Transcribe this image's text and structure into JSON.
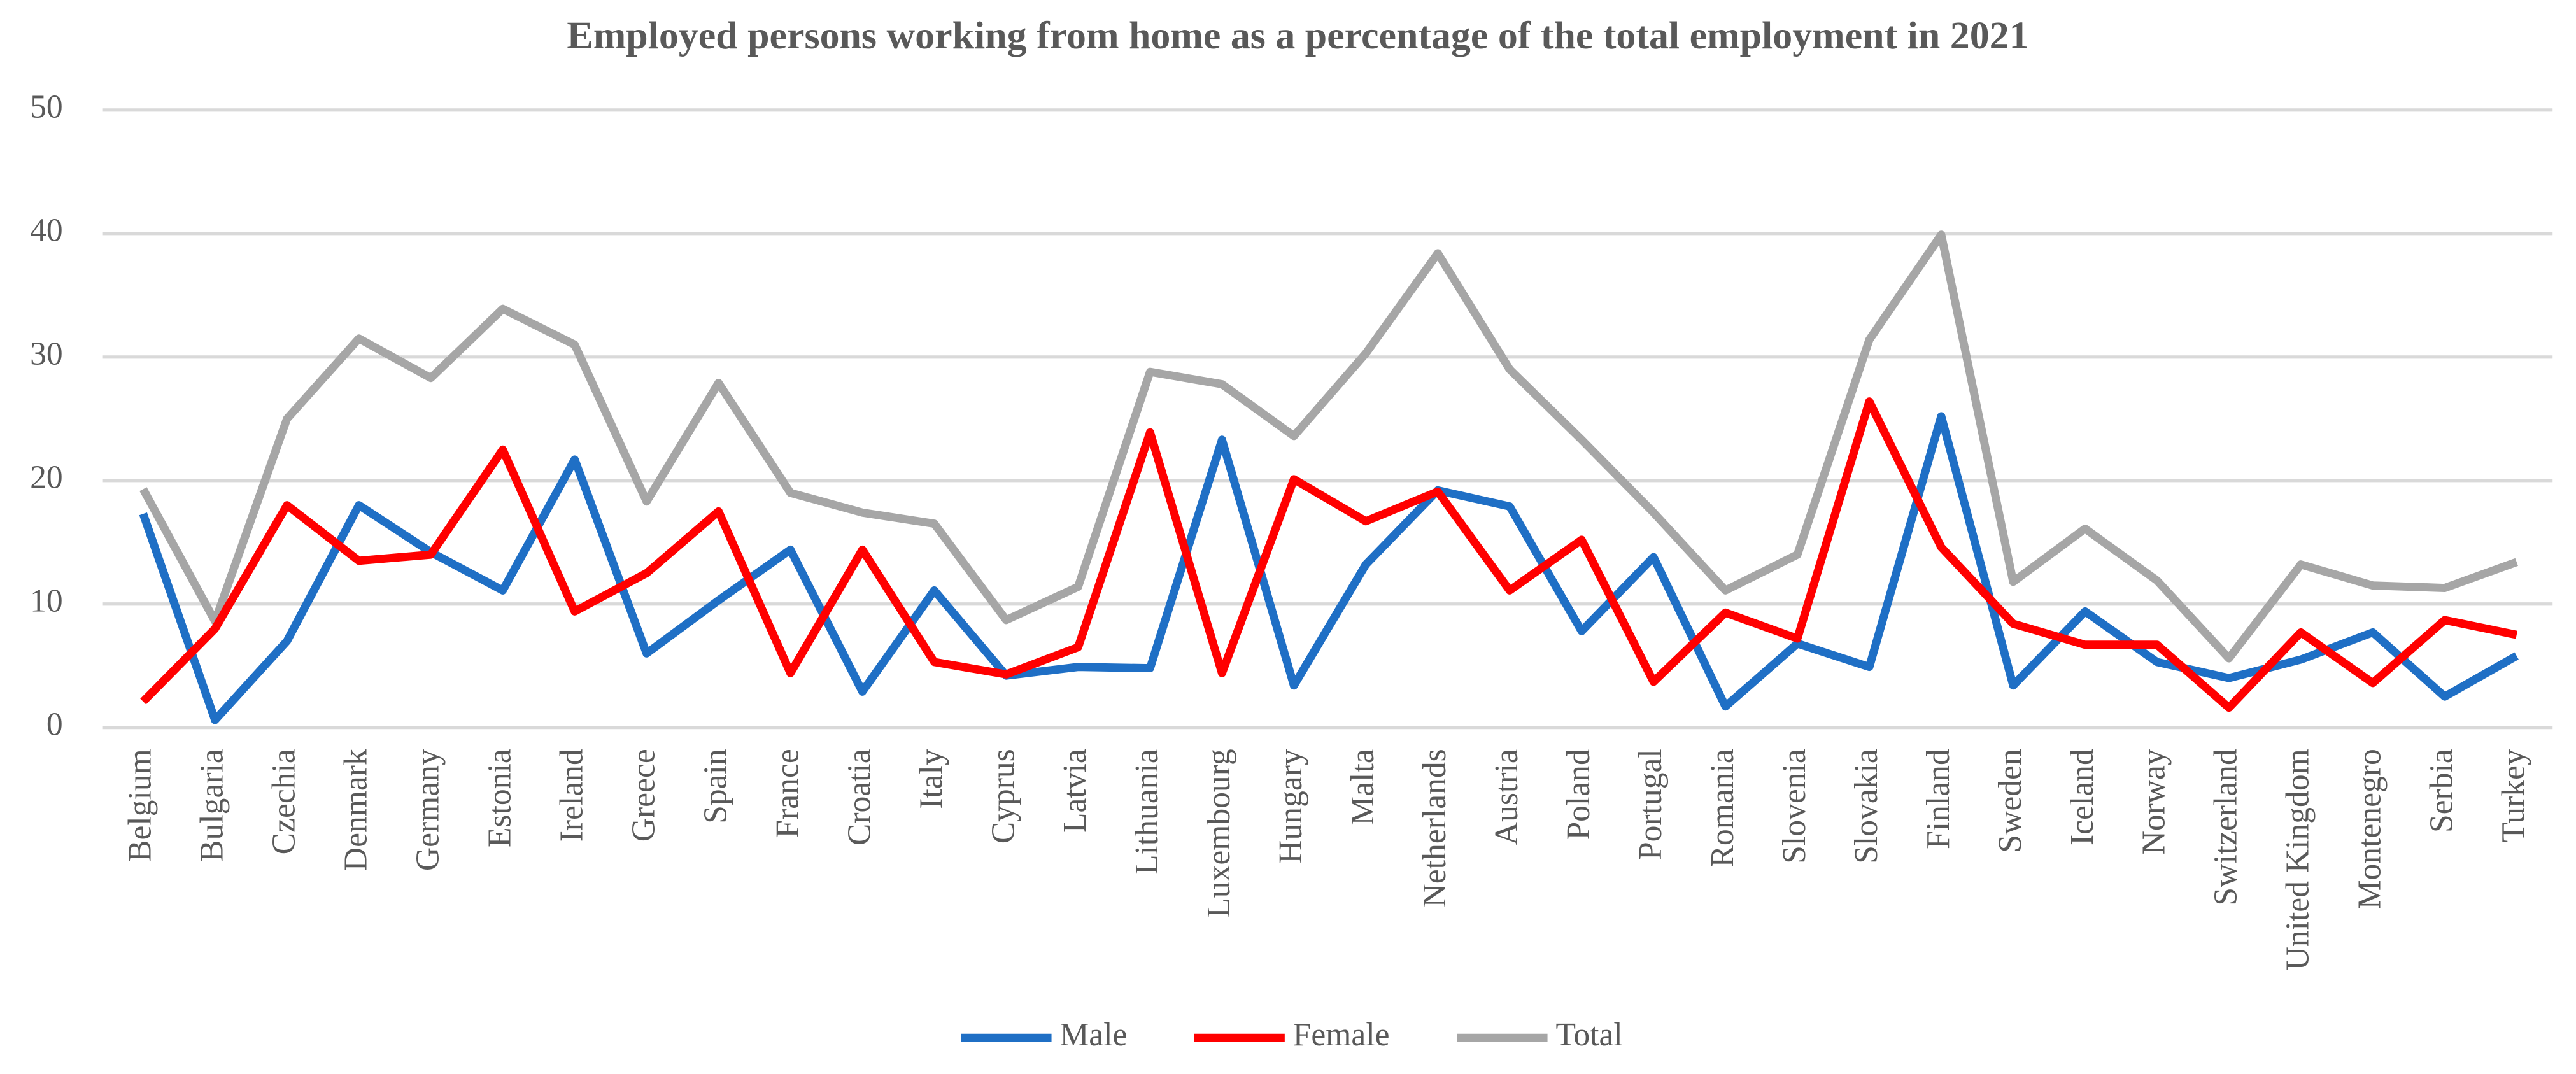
{
  "chart_data": {
    "type": "line",
    "title": "Employed persons working from home as a percentage of the total employment in 2021",
    "categories": [
      "Belgium",
      "Bulgaria",
      "Czechia",
      "Denmark",
      "Germany",
      "Estonia",
      "Ireland",
      "Greece",
      "Spain",
      "France",
      "Croatia",
      "Italy",
      "Cyprus",
      "Latvia",
      "Lithuania",
      "Luxembourg",
      "Hungary",
      "Malta",
      "Netherlands",
      "Austria",
      "Poland",
      "Portugal",
      "Romania",
      "Slovenia",
      "Slovakia",
      "Finland",
      "Sweden",
      "Iceland",
      "Norway",
      "Switzerland",
      "United Kingdom",
      "Montenegro",
      "Serbia",
      "Turkey"
    ],
    "series": [
      {
        "name": "Male",
        "color": "#1f6fc5",
        "values": [
          17.3,
          0.6,
          7,
          18,
          14.2,
          11.1,
          21.7,
          6,
          10.3,
          14.4,
          2.9,
          11.1,
          4.2,
          4.9,
          4.8,
          23.3,
          3.4,
          13.2,
          19.2,
          17.9,
          7.8,
          13.8,
          1.7,
          6.8,
          4.9,
          25.2,
          3.4,
          9.4,
          5.3,
          4,
          5.5,
          7.7,
          2.5,
          5.8
        ]
      },
      {
        "name": "Female",
        "color": "#ff0000",
        "values": [
          2.1,
          8,
          18,
          13.5,
          14,
          22.5,
          9.4,
          12.5,
          17.5,
          4.4,
          14.4,
          5.3,
          4.3,
          6.5,
          23.9,
          4.4,
          20.1,
          16.7,
          19.1,
          11.1,
          15.2,
          3.7,
          9.3,
          7.2,
          26.4,
          14.6,
          8.4,
          6.7,
          6.7,
          1.6,
          7.7,
          3.6,
          8.7,
          7.5
        ]
      },
      {
        "name": "Total",
        "color": "#a6a6a6",
        "values": [
          19.3,
          8.6,
          25,
          31.5,
          28.3,
          33.9,
          31,
          18.3,
          27.9,
          19,
          17.4,
          16.5,
          8.7,
          11.4,
          28.8,
          27.8,
          23.6,
          30.3,
          38.4,
          29,
          23.3,
          17.4,
          11.1,
          14,
          31.4,
          39.9,
          11.8,
          16.1,
          11.9,
          5.6,
          13.2,
          11.5,
          11.3,
          13.4
        ]
      }
    ],
    "ylim": [
      0,
      50
    ],
    "yticks": [
      0,
      10,
      20,
      30,
      40,
      50
    ],
    "grid": true,
    "legend": "bottom"
  }
}
